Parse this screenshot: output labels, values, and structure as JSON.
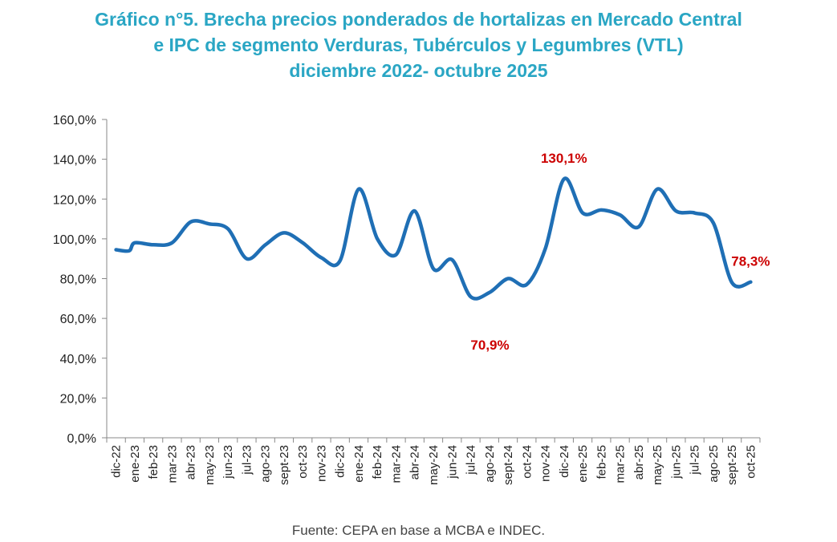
{
  "title": {
    "line1": "Gráfico n°5. Brecha precios ponderados de hortalizas en Mercado Central",
    "line2": "e IPC de segmento Verduras, Tubérculos y Legumbres (VTL)",
    "line3": "diciembre 2022- octubre 2025"
  },
  "source": "Fuente: CEPA en base a MCBA e INDEC.",
  "colors": {
    "line": "#1f6fb5",
    "title": "#2aa6c4",
    "annotation": "#cc0000"
  },
  "chart_data": {
    "type": "line",
    "title": "Brecha precios ponderados de hortalizas en Mercado Central e IPC de segmento VTL",
    "xlabel": "",
    "ylabel": "",
    "ylim": [
      0,
      160
    ],
    "yticks": [
      0,
      20,
      40,
      60,
      80,
      100,
      120,
      140,
      160
    ],
    "ytick_labels": [
      "0,0%",
      "20,0%",
      "40,0%",
      "60,0%",
      "80,0%",
      "100,0%",
      "120,0%",
      "140,0%",
      "160,0%"
    ],
    "categories": [
      "dic-22",
      "ene-23",
      "feb-23",
      "mar-23",
      "abr-23",
      "may-23",
      "jun-23",
      "jul-23",
      "ago-23",
      "sept-23",
      "oct-23",
      "nov-23",
      "dic-23",
      "ene-24",
      "feb-24",
      "mar-24",
      "abr-24",
      "may-24",
      "jun-24",
      "jul-24",
      "ago-24",
      "sept-24",
      "oct-24",
      "nov-24",
      "dic-24",
      "ene-25",
      "feb-25",
      "mar-25",
      "abr-25",
      "may-25",
      "jun-25",
      "jul-25",
      "ago-25",
      "sept-25",
      "oct-25"
    ],
    "series": [
      {
        "name": "Brecha",
        "x": [
          0,
          0.7,
          1,
          2,
          3,
          4,
          5,
          6,
          7,
          8,
          9,
          10,
          11,
          12,
          13,
          14,
          15,
          16,
          17,
          18,
          19,
          20,
          21,
          22,
          23,
          24,
          25,
          26,
          27,
          28,
          29,
          30,
          31,
          32,
          33,
          34
        ],
        "values": [
          94.5,
          94,
          98,
          97,
          98,
          108.5,
          107.5,
          105,
          90,
          97,
          103,
          98,
          90.5,
          89,
          125,
          100,
          92,
          114,
          85,
          89.5,
          70.9,
          73,
          80,
          77,
          95,
          130.1,
          113,
          114.5,
          112,
          106,
          125,
          114,
          113,
          108,
          78,
          78.3
        ]
      }
    ],
    "annotations": [
      {
        "label": "130,1%",
        "category": "dic-24",
        "value": 130.1
      },
      {
        "label": "70,9%",
        "category": "jul-24",
        "value": 70.9
      },
      {
        "label": "78,3%",
        "category": "oct-25",
        "value": 78.3
      }
    ],
    "grid": false,
    "legend": "none"
  }
}
